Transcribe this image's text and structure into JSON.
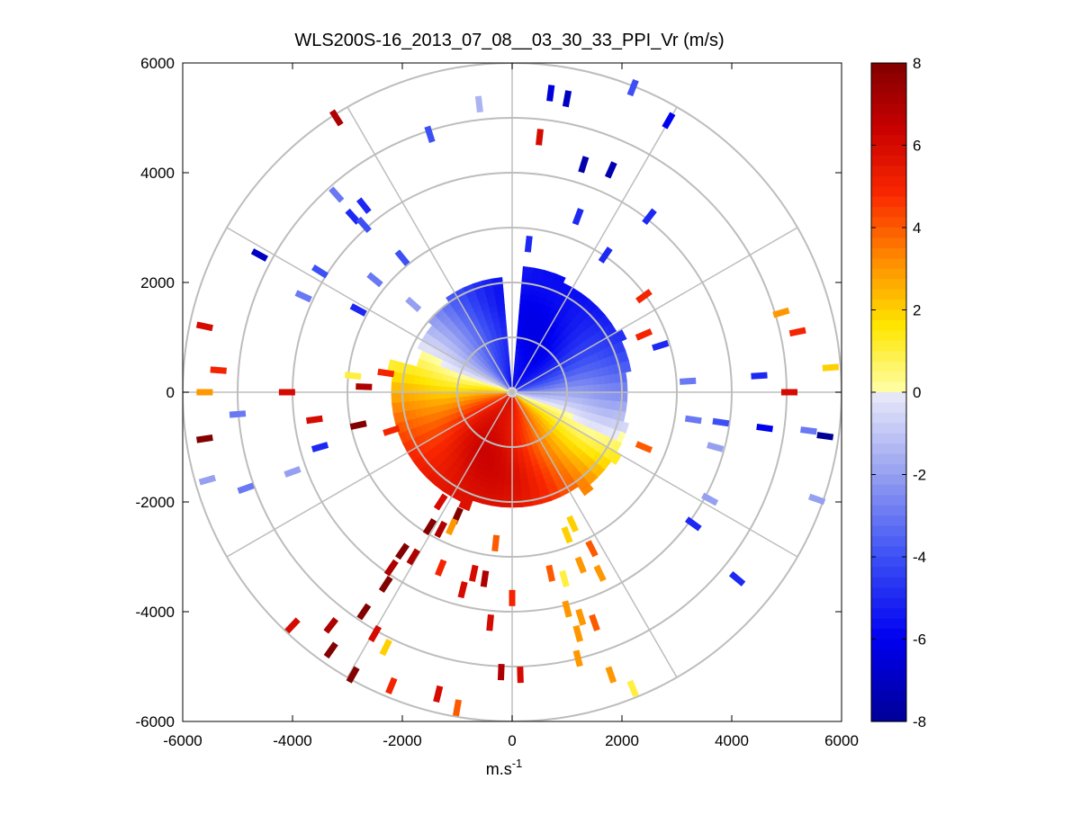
{
  "chart_data": {
    "type": "polar-ppi",
    "title": "WLS200S-16_2013_07_08__03_30_33_PPI_Vr (m/s)",
    "xlabel_base": "m.s",
    "xlabel_exp": "-1",
    "xlim": [
      -6000,
      6000
    ],
    "ylim": [
      -6000,
      6000
    ],
    "xticks": [
      -6000,
      -4000,
      -2000,
      0,
      2000,
      4000,
      6000
    ],
    "xtick_labels": [
      "-6000",
      "-4000",
      "-2000",
      "0",
      "2000",
      "4000",
      "6000"
    ],
    "yticks": [
      6000,
      4000,
      2000,
      0,
      -2000,
      -4000,
      -6000
    ],
    "ytick_labels": [
      "6000",
      "4000",
      "2000",
      "0",
      "-2000",
      "-4000",
      "-6000"
    ],
    "range_rings_m": [
      1000,
      2000,
      3000,
      4000,
      5000,
      6000
    ],
    "spoke_angles_deg": [
      0,
      30,
      60,
      90,
      120,
      150,
      180,
      210,
      240,
      270,
      300,
      330
    ],
    "colorbar": {
      "min": -8,
      "max": 8,
      "ticks": [
        8,
        6,
        4,
        2,
        0,
        -2,
        -4,
        -6,
        -8
      ],
      "tick_labels": [
        "8",
        "6",
        "4",
        "2",
        "0",
        "-2",
        "-4",
        "-6",
        "-8"
      ]
    },
    "field_model": {
      "description": "Radial velocity approximately -6 cos(azimuth - 22 deg) within ~2300 m; scattered returns beyond",
      "amplitude_ms": 6,
      "direction_deg": 22,
      "core_max_range_m": 2300
    },
    "scatter_returns": [
      {
        "x": -3200,
        "y": 5000,
        "v": 7
      },
      {
        "x": -600,
        "y": 5250,
        "v": -1.5
      },
      {
        "x": 700,
        "y": 5450,
        "v": -6.5
      },
      {
        "x": 1000,
        "y": 5350,
        "v": -7
      },
      {
        "x": 2200,
        "y": 5550,
        "v": -4
      },
      {
        "x": 2850,
        "y": 4950,
        "v": -6
      },
      {
        "x": 500,
        "y": 4650,
        "v": 6
      },
      {
        "x": -1500,
        "y": 4700,
        "v": -4
      },
      {
        "x": 1300,
        "y": 4150,
        "v": -7.5
      },
      {
        "x": 1800,
        "y": 4050,
        "v": -7.5
      },
      {
        "x": -3200,
        "y": 3600,
        "v": -3
      },
      {
        "x": -2700,
        "y": 3400,
        "v": -5
      },
      {
        "x": -2900,
        "y": 3200,
        "v": -5
      },
      {
        "x": -2700,
        "y": 3050,
        "v": -4
      },
      {
        "x": 1200,
        "y": 3200,
        "v": -5
      },
      {
        "x": 2500,
        "y": 3200,
        "v": -5
      },
      {
        "x": -4600,
        "y": 2500,
        "v": -7
      },
      {
        "x": 300,
        "y": 2700,
        "v": -5
      },
      {
        "x": 1700,
        "y": 2500,
        "v": -5
      },
      {
        "x": -2000,
        "y": 2450,
        "v": -4
      },
      {
        "x": -3500,
        "y": 2200,
        "v": -4
      },
      {
        "x": -2500,
        "y": 2050,
        "v": -3
      },
      {
        "x": 2400,
        "y": 1750,
        "v": 5
      },
      {
        "x": -3800,
        "y": 1750,
        "v": -3
      },
      {
        "x": -2800,
        "y": 1500,
        "v": -5
      },
      {
        "x": -1800,
        "y": 1600,
        "v": -2
      },
      {
        "x": 4900,
        "y": 1450,
        "v": 3
      },
      {
        "x": 5200,
        "y": 1100,
        "v": 5
      },
      {
        "x": -5600,
        "y": 1200,
        "v": 6
      },
      {
        "x": 2400,
        "y": 1050,
        "v": 5
      },
      {
        "x": 2700,
        "y": 850,
        "v": -5
      },
      {
        "x": 4500,
        "y": 300,
        "v": -5
      },
      {
        "x": 5800,
        "y": 450,
        "v": 2
      },
      {
        "x": -5350,
        "y": 400,
        "v": 5
      },
      {
        "x": 3200,
        "y": 200,
        "v": -3
      },
      {
        "x": -2900,
        "y": 300,
        "v": 1
      },
      {
        "x": -2300,
        "y": 350,
        "v": 5
      },
      {
        "x": -2700,
        "y": 100,
        "v": 7
      },
      {
        "x": 5050,
        "y": 0,
        "v": 6
      },
      {
        "x": -4100,
        "y": 0,
        "v": 6
      },
      {
        "x": -5600,
        "y": 0,
        "v": 3
      },
      {
        "x": -5000,
        "y": -400,
        "v": -3
      },
      {
        "x": 3300,
        "y": -500,
        "v": -3
      },
      {
        "x": 3800,
        "y": -550,
        "v": -4
      },
      {
        "x": 4600,
        "y": -650,
        "v": -6
      },
      {
        "x": 5400,
        "y": -700,
        "v": -3
      },
      {
        "x": 5700,
        "y": -800,
        "v": -8
      },
      {
        "x": -5600,
        "y": -850,
        "v": 8
      },
      {
        "x": -3600,
        "y": -500,
        "v": 6
      },
      {
        "x": -2800,
        "y": -600,
        "v": 8
      },
      {
        "x": -2200,
        "y": -700,
        "v": 5
      },
      {
        "x": -3500,
        "y": -1000,
        "v": -5
      },
      {
        "x": 2400,
        "y": -1000,
        "v": 4
      },
      {
        "x": 3700,
        "y": -1000,
        "v": -2
      },
      {
        "x": -4000,
        "y": -1450,
        "v": -2
      },
      {
        "x": -5550,
        "y": -1600,
        "v": -2
      },
      {
        "x": -4850,
        "y": -1750,
        "v": -3
      },
      {
        "x": 3600,
        "y": -1950,
        "v": -2
      },
      {
        "x": 5550,
        "y": -1950,
        "v": -2
      },
      {
        "x": -1300,
        "y": -2000,
        "v": 6
      },
      {
        "x": -1000,
        "y": -2250,
        "v": 8
      },
      {
        "x": 3300,
        "y": -2400,
        "v": -5
      },
      {
        "x": -1300,
        "y": -2500,
        "v": 7
      },
      {
        "x": -1500,
        "y": -2450,
        "v": 8
      },
      {
        "x": -1100,
        "y": -2450,
        "v": 3
      },
      {
        "x": 1100,
        "y": -2400,
        "v": 2
      },
      {
        "x": -300,
        "y": -2750,
        "v": 4
      },
      {
        "x": 1000,
        "y": -2600,
        "v": 2
      },
      {
        "x": -2000,
        "y": -2900,
        "v": 8
      },
      {
        "x": -1800,
        "y": -3000,
        "v": 7
      },
      {
        "x": 1450,
        "y": -2850,
        "v": 4
      },
      {
        "x": -2200,
        "y": -3200,
        "v": 7
      },
      {
        "x": -1300,
        "y": -3200,
        "v": 5
      },
      {
        "x": -700,
        "y": -3300,
        "v": 6
      },
      {
        "x": -500,
        "y": -3400,
        "v": 7
      },
      {
        "x": 700,
        "y": -3300,
        "v": 4
      },
      {
        "x": 1250,
        "y": -3150,
        "v": 3
      },
      {
        "x": 1600,
        "y": -3300,
        "v": 3
      },
      {
        "x": 950,
        "y": -3400,
        "v": 1
      },
      {
        "x": -2300,
        "y": -3500,
        "v": 8
      },
      {
        "x": -900,
        "y": -3600,
        "v": 6
      },
      {
        "x": 4100,
        "y": -3400,
        "v": -5
      },
      {
        "x": 0,
        "y": -3750,
        "v": 5
      },
      {
        "x": -2700,
        "y": -4000,
        "v": 8
      },
      {
        "x": 1000,
        "y": -3950,
        "v": 3
      },
      {
        "x": 1250,
        "y": -4100,
        "v": 3
      },
      {
        "x": 1500,
        "y": -4200,
        "v": 4
      },
      {
        "x": -4000,
        "y": -4250,
        "v": 6
      },
      {
        "x": -3300,
        "y": -4250,
        "v": 7
      },
      {
        "x": -2500,
        "y": -4400,
        "v": 6
      },
      {
        "x": -400,
        "y": -4200,
        "v": 6
      },
      {
        "x": 1200,
        "y": -4400,
        "v": 3
      },
      {
        "x": -2300,
        "y": -4650,
        "v": 2
      },
      {
        "x": -3300,
        "y": -4700,
        "v": 8
      },
      {
        "x": 1200,
        "y": -4850,
        "v": 3
      },
      {
        "x": -2900,
        "y": -5150,
        "v": 8
      },
      {
        "x": -200,
        "y": -5100,
        "v": 7
      },
      {
        "x": 150,
        "y": -5150,
        "v": 6
      },
      {
        "x": 1800,
        "y": -5150,
        "v": 3
      },
      {
        "x": -2200,
        "y": -5350,
        "v": 5
      },
      {
        "x": -1350,
        "y": -5500,
        "v": 6
      },
      {
        "x": -1000,
        "y": -5750,
        "v": 4
      },
      {
        "x": 2200,
        "y": -5400,
        "v": 1
      }
    ]
  }
}
